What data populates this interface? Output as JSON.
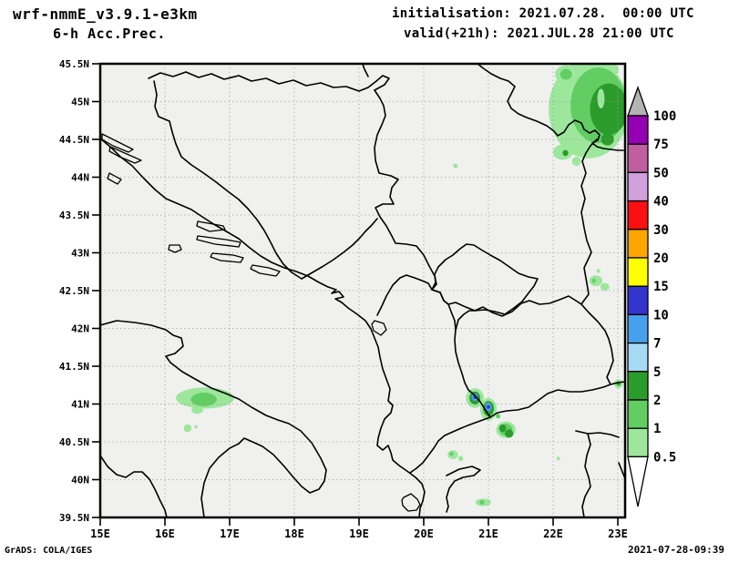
{
  "header": {
    "model_title": "wrf-nmmE_v3.9.1-e3km",
    "product_title": "6-h Acc.Prec.",
    "init_line": "initialisation: 2021.07.28.  00:00 UTC",
    "valid_line": "valid(+21h): 2021.JUL.28 21:00 UTC"
  },
  "footer": {
    "grads_credit": "GrADS: COLA/IGES",
    "timestamp": "2021-07-28-09:39"
  },
  "colors": {
    "page_bg": "#ffffff",
    "map_bg": "#f0f0ee",
    "line": "#000000",
    "grid": "#9a9a9a"
  },
  "chart_data": {
    "type": "map",
    "title": "wrf-nmmE_v3.9.1-e3km 6-h Acc.Prec.",
    "subtitle": "6-h accumulated precipitation, valid 2021.JUL.28 21:00 UTC (+21h)",
    "lon_range": [
      15.0,
      23.1
    ],
    "lat_range": [
      39.5,
      45.5
    ],
    "x_ticks": [
      "15E",
      "16E",
      "17E",
      "18E",
      "19E",
      "20E",
      "21E",
      "22E",
      "23E"
    ],
    "y_ticks": [
      "45.5N",
      "45N",
      "44.5N",
      "44N",
      "43.5N",
      "43N",
      "42.5N",
      "42N",
      "41.5N",
      "41N",
      "40.5N",
      "40N",
      "39.5N"
    ],
    "grid": "dotted, 1 deg lon x 0.5 deg lat",
    "legend_position": "right",
    "colorbar": {
      "levels": [
        0.5,
        1,
        2,
        5,
        7,
        10,
        15,
        20,
        30,
        40,
        50,
        75,
        100
      ],
      "labels": [
        "0.5",
        "1",
        "2",
        "5",
        "7",
        "10",
        "15",
        "20",
        "30",
        "40",
        "50",
        "75",
        "100"
      ],
      "colors": [
        "#9ce79c",
        "#62cd62",
        "#2b9c2b",
        "#a6daf5",
        "#47a0ee",
        "#3333cd",
        "#ffff00",
        "#ffa500",
        "#fa1010",
        "#cfa2dd",
        "#bf5fa0",
        "#9400b2"
      ],
      "over_color": "#b4b4b4",
      "under_color": "#ffffff"
    },
    "precip_cells": [
      {
        "lon": 22.55,
        "lat": 44.9,
        "rlon": 0.62,
        "rlat": 0.65,
        "level": 0.5
      },
      {
        "lon": 22.2,
        "lat": 45.36,
        "rlon": 0.17,
        "rlat": 0.12,
        "level": 0.5
      },
      {
        "lon": 22.9,
        "lat": 45.42,
        "rlon": 0.11,
        "rlat": 0.09,
        "level": 0.5
      },
      {
        "lon": 22.15,
        "lat": 44.33,
        "rlon": 0.15,
        "rlat": 0.1,
        "level": 0.5
      },
      {
        "lon": 22.36,
        "lat": 44.21,
        "rlon": 0.07,
        "rlat": 0.06,
        "level": 0.5
      },
      {
        "lon": 22.7,
        "lat": 44.95,
        "rlon": 0.43,
        "rlat": 0.5,
        "level": 1
      },
      {
        "lon": 22.2,
        "lat": 45.36,
        "rlon": 0.09,
        "rlat": 0.07,
        "level": 1
      },
      {
        "lon": 22.86,
        "lat": 44.9,
        "rlon": 0.29,
        "rlat": 0.34,
        "level": 2
      },
      {
        "lon": 22.84,
        "lat": 44.5,
        "rlon": 0.1,
        "rlat": 0.08,
        "level": 2
      },
      {
        "lon": 22.19,
        "lat": 44.32,
        "rlon": 0.045,
        "rlat": 0.04,
        "level": 2
      },
      {
        "lon": 22.74,
        "lat": 45.04,
        "rlon": 0.055,
        "rlat": 0.13,
        "level": 0.5
      },
      {
        "lon": 16.62,
        "lat": 41.08,
        "rlon": 0.45,
        "rlat": 0.14,
        "level": 0.5
      },
      {
        "lon": 16.5,
        "lat": 40.92,
        "rlon": 0.09,
        "rlat": 0.05,
        "level": 0.5
      },
      {
        "lon": 16.35,
        "lat": 40.68,
        "rlon": 0.06,
        "rlat": 0.05,
        "level": 0.5
      },
      {
        "lon": 16.48,
        "lat": 40.7,
        "rlon": 0.025,
        "rlat": 0.02,
        "level": 0.5
      },
      {
        "lon": 16.6,
        "lat": 41.06,
        "rlon": 0.2,
        "rlat": 0.09,
        "level": 1
      },
      {
        "lon": 20.79,
        "lat": 41.08,
        "rlon": 0.14,
        "rlat": 0.13,
        "level": 0.5
      },
      {
        "lon": 20.79,
        "lat": 41.08,
        "rlon": 0.085,
        "rlat": 0.085,
        "level": 2
      },
      {
        "lon": 20.79,
        "lat": 41.09,
        "rlon": 0.05,
        "rlat": 0.05,
        "level": 7
      },
      {
        "lon": 20.79,
        "lat": 41.09,
        "rlon": 0.022,
        "rlat": 0.022,
        "level": 10
      },
      {
        "lon": 21.0,
        "lat": 40.93,
        "rlon": 0.13,
        "rlat": 0.15,
        "level": 0.5
      },
      {
        "lon": 21.0,
        "lat": 40.94,
        "rlon": 0.085,
        "rlat": 0.1,
        "level": 2
      },
      {
        "lon": 21.0,
        "lat": 40.96,
        "rlon": 0.05,
        "rlat": 0.06,
        "level": 7
      },
      {
        "lon": 21.0,
        "lat": 40.96,
        "rlon": 0.025,
        "rlat": 0.028,
        "level": 10
      },
      {
        "lon": 21.27,
        "lat": 40.66,
        "rlon": 0.15,
        "rlat": 0.11,
        "level": 0.5
      },
      {
        "lon": 21.27,
        "lat": 40.66,
        "rlon": 0.1,
        "rlat": 0.08,
        "level": 1
      },
      {
        "lon": 21.22,
        "lat": 40.68,
        "rlon": 0.055,
        "rlat": 0.05,
        "level": 2
      },
      {
        "lon": 21.32,
        "lat": 40.61,
        "rlon": 0.065,
        "rlat": 0.055,
        "level": 2
      },
      {
        "lon": 21.15,
        "lat": 40.84,
        "rlon": 0.035,
        "rlat": 0.03,
        "level": 1
      },
      {
        "lon": 20.45,
        "lat": 40.33,
        "rlon": 0.08,
        "rlat": 0.06,
        "level": 0.5
      },
      {
        "lon": 20.43,
        "lat": 40.34,
        "rlon": 0.03,
        "rlat": 0.025,
        "level": 1
      },
      {
        "lon": 20.57,
        "lat": 40.28,
        "rlon": 0.04,
        "rlat": 0.035,
        "level": 0.5
      },
      {
        "lon": 20.92,
        "lat": 39.7,
        "rlon": 0.12,
        "rlat": 0.05,
        "level": 0.5
      },
      {
        "lon": 20.9,
        "lat": 39.7,
        "rlon": 0.04,
        "rlat": 0.028,
        "level": 1
      },
      {
        "lon": 22.66,
        "lat": 42.63,
        "rlon": 0.1,
        "rlat": 0.07,
        "level": 0.5
      },
      {
        "lon": 22.8,
        "lat": 42.55,
        "rlon": 0.07,
        "rlat": 0.05,
        "level": 0.5
      },
      {
        "lon": 22.63,
        "lat": 42.63,
        "rlon": 0.03,
        "rlat": 0.028,
        "level": 1
      },
      {
        "lon": 23.01,
        "lat": 41.27,
        "rlon": 0.07,
        "rlat": 0.06,
        "level": 0.5
      },
      {
        "lon": 23.01,
        "lat": 41.27,
        "rlon": 0.033,
        "rlat": 0.03,
        "level": 2
      },
      {
        "lon": 20.49,
        "lat": 44.15,
        "rlon": 0.035,
        "rlat": 0.03,
        "level": 0.5
      },
      {
        "lon": 22.08,
        "lat": 40.28,
        "rlon": 0.03,
        "rlat": 0.025,
        "level": 0.5
      },
      {
        "lon": 22.7,
        "lat": 42.76,
        "rlon": 0.03,
        "rlat": 0.025,
        "level": 0.5
      }
    ]
  }
}
